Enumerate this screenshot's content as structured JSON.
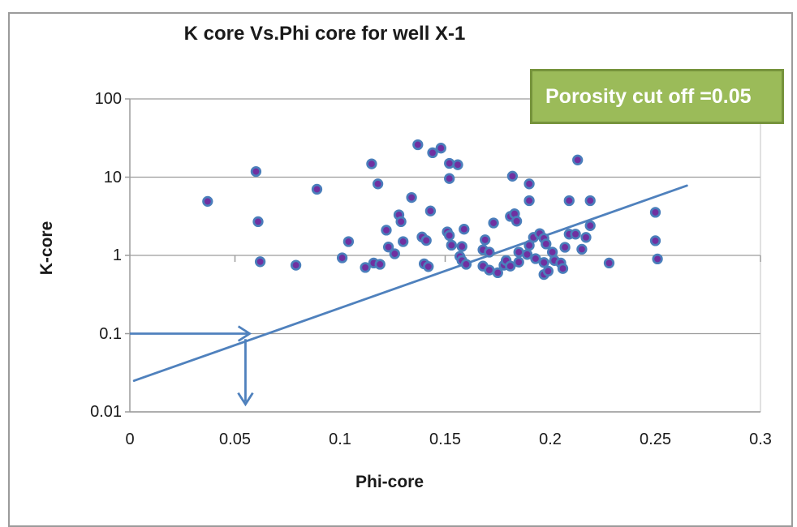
{
  "annotation": {
    "label": "Porosity cut off =0.05",
    "fill": "#9bbb59",
    "border": "#76933c",
    "text_color": "#ffffff"
  },
  "chart_data": {
    "type": "scatter",
    "title": "K core Vs.Phi core for well X-1",
    "xlabel": "Phi-core",
    "ylabel": "K-core",
    "x_axis": {
      "min": 0,
      "max": 0.3,
      "tick_values": [
        0,
        0.05,
        0.1,
        0.15,
        0.2,
        0.25,
        0.3
      ],
      "tick_labels": [
        "0",
        "0.05",
        "0.1",
        "0.15",
        "0.2",
        "0.25",
        "0.3"
      ]
    },
    "y_axis": {
      "scale": "log",
      "min": 0.01,
      "max": 100,
      "tick_values": [
        100,
        10,
        1,
        0.1,
        0.01
      ],
      "tick_labels": [
        "100",
        "10",
        "1",
        "0.1",
        "0.01"
      ]
    },
    "grid": "horizontal-on",
    "points": [
      [
        0.037,
        4.9
      ],
      [
        0.06,
        11.8
      ],
      [
        0.061,
        2.7
      ],
      [
        0.062,
        0.83
      ],
      [
        0.079,
        0.75
      ],
      [
        0.089,
        7.0
      ],
      [
        0.101,
        0.93
      ],
      [
        0.104,
        1.5
      ],
      [
        0.112,
        0.7
      ],
      [
        0.115,
        14.8
      ],
      [
        0.116,
        0.8
      ],
      [
        0.118,
        8.2
      ],
      [
        0.119,
        0.77
      ],
      [
        0.122,
        2.1
      ],
      [
        0.123,
        1.28
      ],
      [
        0.126,
        1.05
      ],
      [
        0.128,
        3.3
      ],
      [
        0.129,
        2.7
      ],
      [
        0.13,
        1.5
      ],
      [
        0.134,
        5.5
      ],
      [
        0.137,
        26
      ],
      [
        0.139,
        1.72
      ],
      [
        0.14,
        0.78
      ],
      [
        0.141,
        1.55
      ],
      [
        0.142,
        0.72
      ],
      [
        0.143,
        3.7
      ],
      [
        0.144,
        20.5
      ],
      [
        0.148,
        23.5
      ],
      [
        0.151,
        2.0
      ],
      [
        0.152,
        15
      ],
      [
        0.152,
        9.6
      ],
      [
        0.152,
        1.8
      ],
      [
        0.153,
        1.35
      ],
      [
        0.156,
        14.4
      ],
      [
        0.157,
        0.97
      ],
      [
        0.158,
        1.3
      ],
      [
        0.158,
        0.86
      ],
      [
        0.159,
        2.16
      ],
      [
        0.16,
        0.77
      ],
      [
        0.168,
        1.18
      ],
      [
        0.168,
        0.73
      ],
      [
        0.169,
        1.58
      ],
      [
        0.171,
        1.1
      ],
      [
        0.171,
        0.65
      ],
      [
        0.173,
        2.6
      ],
      [
        0.175,
        0.6
      ],
      [
        0.178,
        0.75
      ],
      [
        0.179,
        0.86
      ],
      [
        0.181,
        3.15
      ],
      [
        0.181,
        0.73
      ],
      [
        0.182,
        10.3
      ],
      [
        0.183,
        3.4
      ],
      [
        0.184,
        2.74
      ],
      [
        0.185,
        1.1
      ],
      [
        0.185,
        0.82
      ],
      [
        0.189,
        1.03
      ],
      [
        0.19,
        8.2
      ],
      [
        0.19,
        5.0
      ],
      [
        0.19,
        1.34
      ],
      [
        0.192,
        1.7
      ],
      [
        0.193,
        0.91
      ],
      [
        0.195,
        1.9
      ],
      [
        0.197,
        1.65
      ],
      [
        0.197,
        0.81
      ],
      [
        0.197,
        0.57
      ],
      [
        0.198,
        1.4
      ],
      [
        0.199,
        0.63
      ],
      [
        0.201,
        1.1
      ],
      [
        0.202,
        0.86
      ],
      [
        0.205,
        0.8
      ],
      [
        0.206,
        0.68
      ],
      [
        0.207,
        1.27
      ],
      [
        0.209,
        5.0
      ],
      [
        0.209,
        1.87
      ],
      [
        0.212,
        1.87
      ],
      [
        0.213,
        16.6
      ],
      [
        0.215,
        1.2
      ],
      [
        0.217,
        1.7
      ],
      [
        0.219,
        5.0
      ],
      [
        0.219,
        2.4
      ],
      [
        0.228,
        0.8
      ],
      [
        0.25,
        3.55
      ],
      [
        0.25,
        1.54
      ],
      [
        0.251,
        0.9
      ]
    ],
    "trendline": {
      "phi1": 0.002,
      "k1": 0.025,
      "phi2": 0.265,
      "k2": 7.8
    },
    "cutoff_arrows": {
      "horizontal": {
        "from_phi": 0.0,
        "to_phi": 0.057,
        "at_k": 0.1
      },
      "vertical": {
        "at_phi": 0.055,
        "from_k": 0.085,
        "to_k": 0.0125
      }
    },
    "legend": "none",
    "colors": {
      "marker_fill": "#7030a0",
      "marker_stroke": "#4a7ebb",
      "line": "#4f81bd",
      "grid": "#9c9c9c",
      "axis": "#9c9c9c"
    }
  }
}
